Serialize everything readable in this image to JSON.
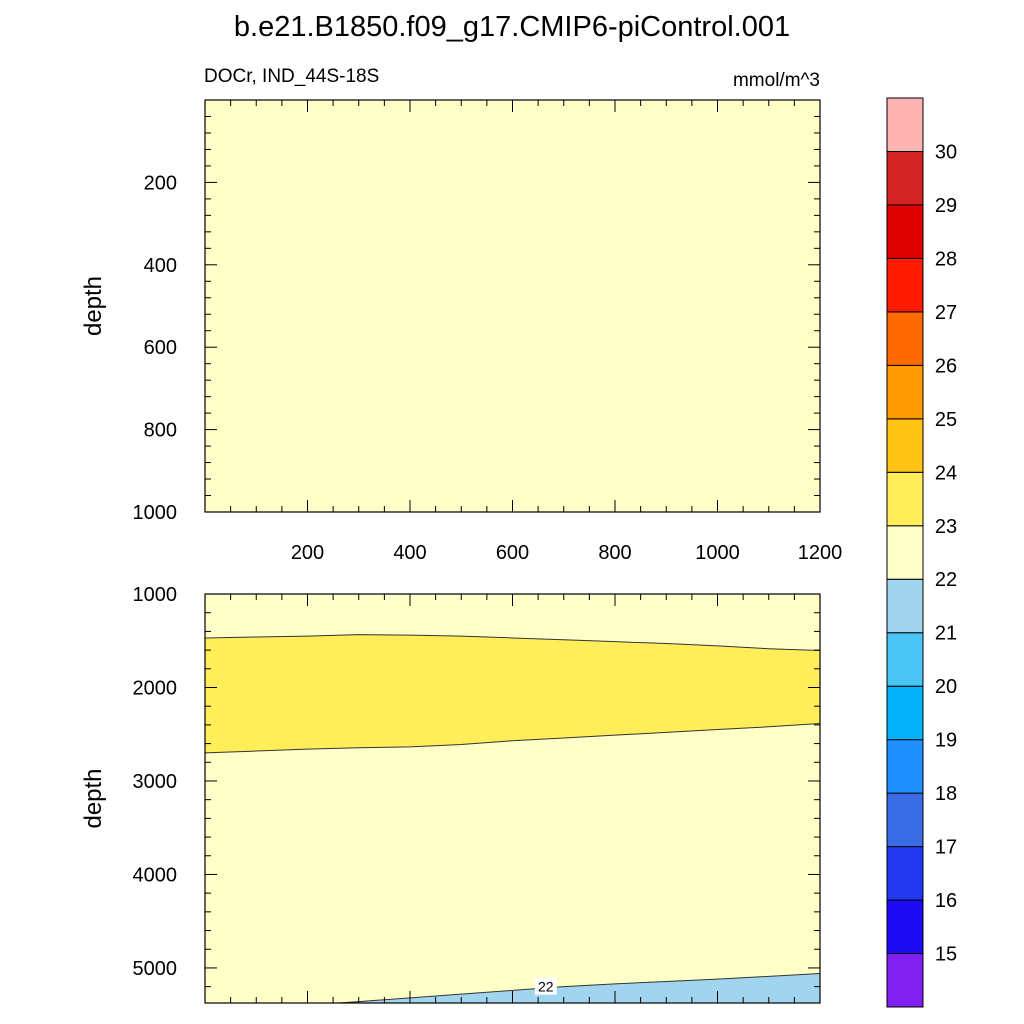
{
  "chart_data": {
    "type": "heatmap",
    "title": "b.e21.B1850.f09_g17.CMIP6-piControl.001",
    "variable_label": "DOCr, IND_44S-18S",
    "units": "mmol/m^3",
    "colorbar": {
      "levels": [
        15,
        16,
        17,
        18,
        19,
        20,
        21,
        22,
        23,
        24,
        25,
        26,
        27,
        28,
        29,
        30
      ],
      "labels": [
        "15",
        "16",
        "17",
        "18",
        "19",
        "20",
        "21",
        "22",
        "23",
        "24",
        "25",
        "26",
        "27",
        "28",
        "29",
        "30"
      ],
      "colors": [
        "#7f1ff0",
        "#1c0af2",
        "#2238ee",
        "#3b6de7",
        "#1e90ff",
        "#02b3fc",
        "#49c5f6",
        "#a1d5ef",
        "#ffffc8",
        "#ffee5a",
        "#ffc215",
        "#ff9b00",
        "#ff6a00",
        "#ff1a00",
        "#e10000",
        "#d42424",
        "#ffb4b4"
      ]
    },
    "panels": [
      {
        "name": "upper",
        "ylabel": "depth",
        "xlim": [
          0,
          1200
        ],
        "ylim": [
          0,
          1000
        ],
        "x_ticks": [
          200,
          400,
          600,
          800,
          1000,
          1200
        ],
        "x_tick_labels": [
          "200",
          "400",
          "600",
          "800",
          "1000",
          "1200"
        ],
        "y_ticks": [
          200,
          400,
          600,
          800,
          1000
        ],
        "y_tick_labels": [
          "200",
          "400",
          "600",
          "800",
          "1000"
        ],
        "background_level": "22-23",
        "regions": []
      },
      {
        "name": "lower",
        "ylabel": "depth",
        "xlim": [
          0,
          1200
        ],
        "ylim": [
          1000,
          5375
        ],
        "x_ticks": [
          200,
          400,
          600,
          800,
          1000,
          1200
        ],
        "y_ticks": [
          1000,
          2000,
          3000,
          4000,
          5000
        ],
        "y_tick_labels": [
          "1000",
          "2000",
          "3000",
          "4000",
          "5000"
        ],
        "background_level": "22-23",
        "regions": [
          {
            "level": "23-24",
            "top_boundary": [
              [
                0,
                1470
              ],
              [
                100,
                1460
              ],
              [
                200,
                1450
              ],
              [
                300,
                1435
              ],
              [
                400,
                1440
              ],
              [
                500,
                1450
              ],
              [
                600,
                1470
              ],
              [
                700,
                1490
              ],
              [
                800,
                1510
              ],
              [
                900,
                1530
              ],
              [
                1000,
                1555
              ],
              [
                1100,
                1585
              ],
              [
                1200,
                1605
              ]
            ],
            "bottom_boundary": [
              [
                0,
                2700
              ],
              [
                100,
                2680
              ],
              [
                200,
                2660
              ],
              [
                300,
                2645
              ],
              [
                400,
                2635
              ],
              [
                500,
                2610
              ],
              [
                600,
                2570
              ],
              [
                700,
                2540
              ],
              [
                800,
                2510
              ],
              [
                900,
                2480
              ],
              [
                1000,
                2450
              ],
              [
                1100,
                2420
              ],
              [
                1200,
                2385
              ]
            ]
          },
          {
            "level": "21-22",
            "top_boundary": [
              [
                260,
                5375
              ],
              [
                300,
                5360
              ],
              [
                400,
                5320
              ],
              [
                500,
                5280
              ],
              [
                600,
                5240
              ],
              [
                700,
                5200
              ],
              [
                800,
                5170
              ],
              [
                900,
                5145
              ],
              [
                1000,
                5120
              ],
              [
                1100,
                5090
              ],
              [
                1200,
                5060
              ]
            ],
            "contour_label": {
              "text": "22",
              "x": 665,
              "y": 5210
            }
          }
        ]
      }
    ]
  }
}
